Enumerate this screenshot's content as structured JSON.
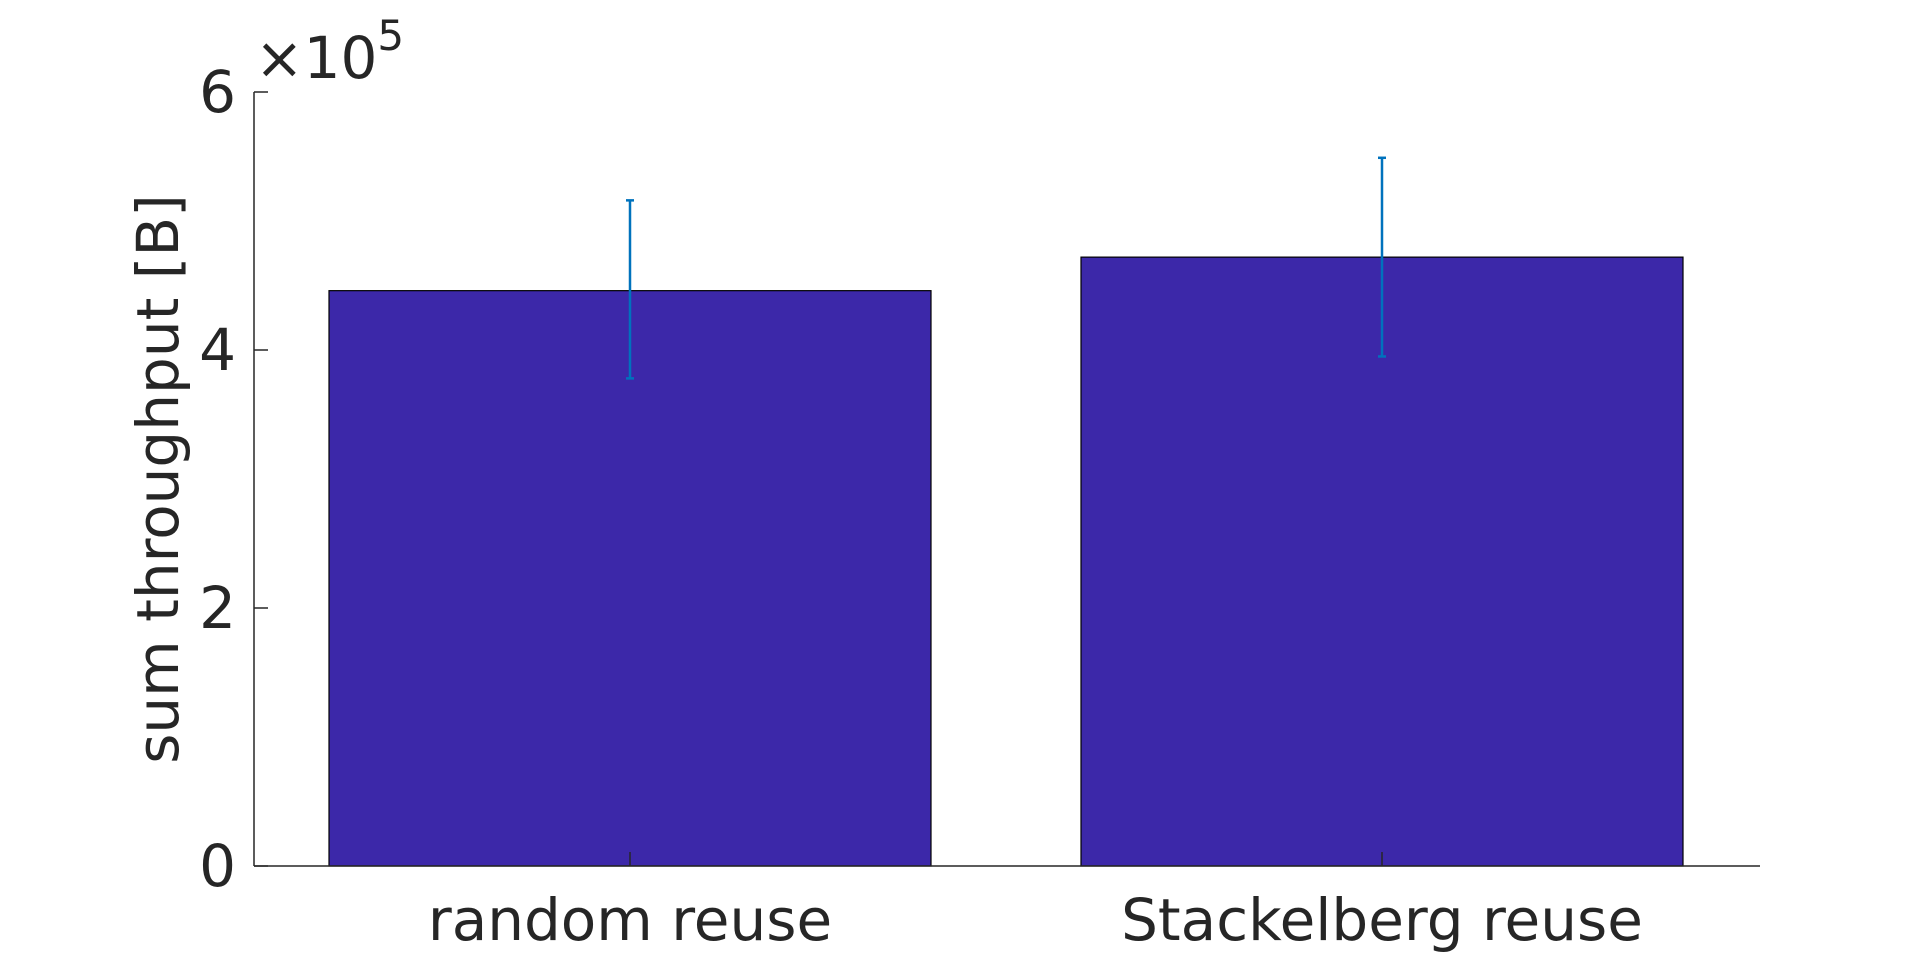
{
  "chart_data": {
    "type": "bar",
    "categories": [
      "random reuse",
      "Stackelberg reuse"
    ],
    "values": [
      446000,
      472000
    ],
    "error_upper": [
      516000,
      549000
    ],
    "error_lower": [
      378000,
      395000
    ],
    "title": "",
    "xlabel": "",
    "ylabel": "sum throughput [B]",
    "ylim": [
      0,
      600000
    ],
    "yticks": [
      0,
      200000,
      400000,
      600000
    ],
    "ytick_labels": [
      "0",
      "2",
      "4",
      "6"
    ],
    "y_multiplier": {
      "base": "×10",
      "exponent": "5"
    },
    "bar_color": "#3C28A9",
    "error_color": "#0072BD",
    "axis_color": "#262626",
    "grid": false
  }
}
